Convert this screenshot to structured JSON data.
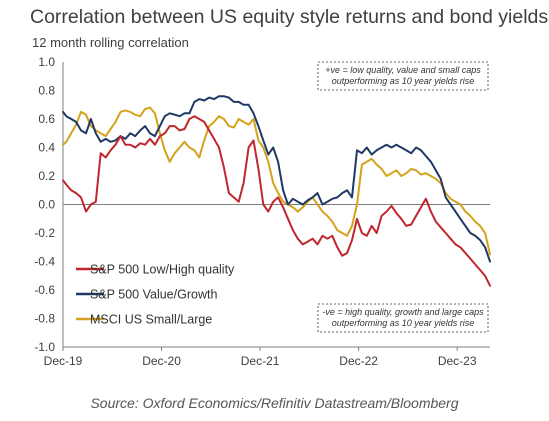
{
  "title": "Correlation between US equity style returns and bond yields",
  "subtitle": "12 month rolling correlation",
  "source": "Source: Oxford Economics/Refinitiv Datastream/Bloomberg",
  "chart_data": {
    "type": "line",
    "title": "Correlation between US equity style returns and bond yields",
    "ylabel": "12 month rolling correlation",
    "ylim": [
      -1.0,
      1.0
    ],
    "xlim": [
      2019.917,
      2024.25
    ],
    "y_ticks": [
      "1.0",
      "0.8",
      "0.6",
      "0.4",
      "0.2",
      "0.0",
      "-0.2",
      "-0.4",
      "-0.6",
      "-0.8",
      "-1.0"
    ],
    "x_ticks": [
      {
        "label": "Dec-19",
        "x": 2019.917
      },
      {
        "label": "Dec-20",
        "x": 2020.917
      },
      {
        "label": "Dec-21",
        "x": 2021.917
      },
      {
        "label": "Dec-22",
        "x": 2022.917
      },
      {
        "label": "Dec-23",
        "x": 2023.917
      }
    ],
    "legend_position": "bottom-left",
    "annotations": [
      {
        "lines": [
          "+ve = low quality, value and small caps",
          "outperforming as 10 year yields rise"
        ],
        "position": "top-right"
      },
      {
        "lines": [
          "-ve = high quality, growth and large caps",
          "outperforming as 10 year yields rise"
        ],
        "position": "bottom-right"
      }
    ],
    "series": [
      {
        "name": "S&P 500 Low/High quality",
        "color": "#C0262D",
        "x": [
          2019.917,
          2019.95,
          2020.0,
          2020.05,
          2020.1,
          2020.15,
          2020.2,
          2020.25,
          2020.3,
          2020.35,
          2020.4,
          2020.45,
          2020.5,
          2020.55,
          2020.6,
          2020.65,
          2020.7,
          2020.75,
          2020.8,
          2020.85,
          2020.9,
          2020.95,
          2021.0,
          2021.05,
          2021.1,
          2021.15,
          2021.2,
          2021.25,
          2021.3,
          2021.35,
          2021.4,
          2021.45,
          2021.5,
          2021.55,
          2021.6,
          2021.65,
          2021.7,
          2021.75,
          2021.8,
          2021.85,
          2021.9,
          2021.95,
          2022.0,
          2022.05,
          2022.1,
          2022.15,
          2022.2,
          2022.25,
          2022.3,
          2022.35,
          2022.4,
          2022.45,
          2022.5,
          2022.55,
          2022.6,
          2022.65,
          2022.7,
          2022.75,
          2022.8,
          2022.85,
          2022.9,
          2022.95,
          2023.0,
          2023.05,
          2023.1,
          2023.15,
          2023.2,
          2023.25,
          2023.3,
          2023.35,
          2023.4,
          2023.45,
          2023.5,
          2023.55,
          2023.6,
          2023.65,
          2023.7,
          2023.75,
          2023.8,
          2023.85,
          2023.9,
          2023.95,
          2024.0,
          2024.05,
          2024.1,
          2024.15,
          2024.2,
          2024.25
        ],
        "y": [
          0.17,
          0.14,
          0.1,
          0.08,
          0.05,
          -0.05,
          0.0,
          0.02,
          0.36,
          0.33,
          0.38,
          0.42,
          0.48,
          0.42,
          0.42,
          0.4,
          0.43,
          0.42,
          0.46,
          0.42,
          0.48,
          0.5,
          0.55,
          0.55,
          0.52,
          0.53,
          0.6,
          0.62,
          0.6,
          0.58,
          0.52,
          0.46,
          0.4,
          0.26,
          0.08,
          0.05,
          0.02,
          0.15,
          0.4,
          0.45,
          0.25,
          0.0,
          -0.05,
          0.02,
          0.05,
          -0.02,
          -0.1,
          -0.18,
          -0.24,
          -0.28,
          -0.26,
          -0.24,
          -0.28,
          -0.22,
          -0.24,
          -0.22,
          -0.3,
          -0.36,
          -0.34,
          -0.25,
          -0.1,
          -0.2,
          -0.22,
          -0.15,
          -0.2,
          -0.08,
          -0.05,
          -0.01,
          -0.06,
          -0.1,
          -0.15,
          -0.14,
          -0.08,
          -0.02,
          0.04,
          -0.05,
          -0.12,
          -0.16,
          -0.2,
          -0.24,
          -0.28,
          -0.3,
          -0.34,
          -0.38,
          -0.42,
          -0.46,
          -0.5,
          -0.57
        ]
      },
      {
        "name": "S&P 500 Value/Growth",
        "color": "#1F3864",
        "x": [
          2019.917,
          2019.95,
          2020.0,
          2020.05,
          2020.1,
          2020.15,
          2020.2,
          2020.25,
          2020.3,
          2020.35,
          2020.4,
          2020.45,
          2020.5,
          2020.55,
          2020.6,
          2020.65,
          2020.7,
          2020.75,
          2020.8,
          2020.85,
          2020.9,
          2020.95,
          2021.0,
          2021.05,
          2021.1,
          2021.15,
          2021.2,
          2021.25,
          2021.3,
          2021.35,
          2021.4,
          2021.45,
          2021.5,
          2021.55,
          2021.6,
          2021.65,
          2021.7,
          2021.75,
          2021.8,
          2021.85,
          2021.9,
          2021.95,
          2022.0,
          2022.05,
          2022.1,
          2022.15,
          2022.2,
          2022.25,
          2022.3,
          2022.35,
          2022.4,
          2022.45,
          2022.5,
          2022.55,
          2022.6,
          2022.65,
          2022.7,
          2022.75,
          2022.8,
          2022.85,
          2022.9,
          2022.95,
          2023.0,
          2023.05,
          2023.1,
          2023.15,
          2023.2,
          2023.25,
          2023.3,
          2023.35,
          2023.4,
          2023.45,
          2023.5,
          2023.55,
          2023.6,
          2023.65,
          2023.7,
          2023.75,
          2023.8,
          2023.85,
          2023.9,
          2023.95,
          2024.0,
          2024.05,
          2024.1,
          2024.15,
          2024.2,
          2024.25
        ],
        "y": [
          0.65,
          0.62,
          0.6,
          0.58,
          0.52,
          0.5,
          0.6,
          0.5,
          0.44,
          0.46,
          0.44,
          0.45,
          0.48,
          0.46,
          0.5,
          0.48,
          0.52,
          0.55,
          0.5,
          0.48,
          0.55,
          0.62,
          0.64,
          0.63,
          0.62,
          0.64,
          0.64,
          0.72,
          0.74,
          0.73,
          0.75,
          0.74,
          0.76,
          0.76,
          0.75,
          0.72,
          0.72,
          0.7,
          0.7,
          0.64,
          0.55,
          0.45,
          0.35,
          0.4,
          0.3,
          0.1,
          0.0,
          0.04,
          0.02,
          0.0,
          0.03,
          0.05,
          0.08,
          0.0,
          0.02,
          0.04,
          0.05,
          0.08,
          0.1,
          0.05,
          0.38,
          0.36,
          0.4,
          0.35,
          0.38,
          0.4,
          0.42,
          0.4,
          0.42,
          0.4,
          0.38,
          0.36,
          0.4,
          0.38,
          0.34,
          0.3,
          0.24,
          0.18,
          0.05,
          0.0,
          -0.05,
          -0.1,
          -0.15,
          -0.2,
          -0.22,
          -0.25,
          -0.3,
          -0.4
        ]
      },
      {
        "name": "MSCI US Small/Large",
        "color": "#D4A21C",
        "x": [
          2019.917,
          2019.95,
          2020.0,
          2020.05,
          2020.1,
          2020.15,
          2020.2,
          2020.25,
          2020.3,
          2020.35,
          2020.4,
          2020.45,
          2020.5,
          2020.55,
          2020.6,
          2020.65,
          2020.7,
          2020.75,
          2020.8,
          2020.85,
          2020.9,
          2020.95,
          2021.0,
          2021.05,
          2021.1,
          2021.15,
          2021.2,
          2021.25,
          2021.3,
          2021.35,
          2021.4,
          2021.45,
          2021.5,
          2021.55,
          2021.6,
          2021.65,
          2021.7,
          2021.75,
          2021.8,
          2021.85,
          2021.9,
          2021.95,
          2022.0,
          2022.05,
          2022.1,
          2022.15,
          2022.2,
          2022.25,
          2022.3,
          2022.35,
          2022.4,
          2022.45,
          2022.5,
          2022.55,
          2022.6,
          2022.65,
          2022.7,
          2022.75,
          2022.8,
          2022.85,
          2022.9,
          2022.95,
          2023.0,
          2023.05,
          2023.1,
          2023.15,
          2023.2,
          2023.25,
          2023.3,
          2023.35,
          2023.4,
          2023.45,
          2023.5,
          2023.55,
          2023.6,
          2023.65,
          2023.7,
          2023.75,
          2023.8,
          2023.85,
          2023.9,
          2023.95,
          2024.0,
          2024.05,
          2024.1,
          2024.15,
          2024.2,
          2024.25
        ],
        "y": [
          0.42,
          0.44,
          0.5,
          0.56,
          0.65,
          0.63,
          0.55,
          0.52,
          0.5,
          0.48,
          0.53,
          0.58,
          0.65,
          0.66,
          0.65,
          0.63,
          0.62,
          0.67,
          0.68,
          0.64,
          0.5,
          0.38,
          0.3,
          0.36,
          0.4,
          0.44,
          0.4,
          0.38,
          0.33,
          0.45,
          0.55,
          0.58,
          0.62,
          0.6,
          0.55,
          0.54,
          0.6,
          0.58,
          0.56,
          0.6,
          0.45,
          0.4,
          0.3,
          0.15,
          0.08,
          0.02,
          0.0,
          -0.02,
          -0.05,
          -0.02,
          0.02,
          0.05,
          0.0,
          -0.05,
          -0.08,
          -0.12,
          -0.18,
          -0.2,
          -0.22,
          -0.15,
          0.0,
          0.28,
          0.3,
          0.32,
          0.28,
          0.25,
          0.2,
          0.22,
          0.24,
          0.2,
          0.22,
          0.25,
          0.24,
          0.21,
          0.22,
          0.2,
          0.18,
          0.15,
          0.08,
          0.04,
          0.02,
          0.0,
          -0.05,
          -0.08,
          -0.12,
          -0.15,
          -0.2,
          -0.35
        ]
      }
    ]
  }
}
